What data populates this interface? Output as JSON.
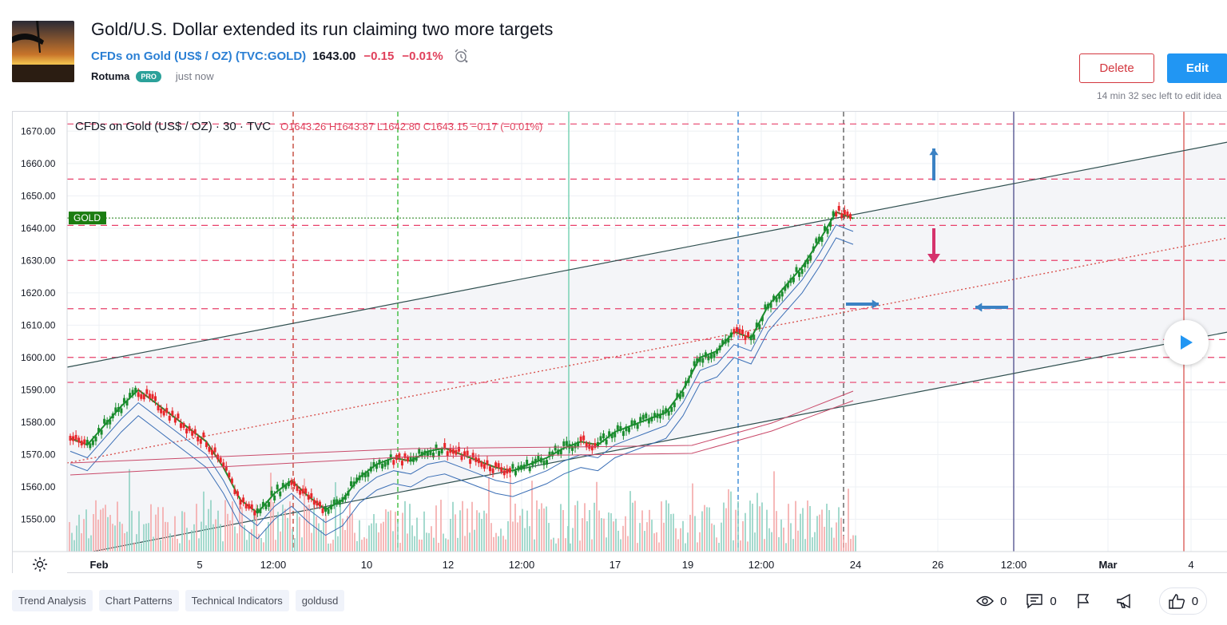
{
  "idea": {
    "title": "Gold/U.S. Dollar extended its run claiming two more targets",
    "symbol_name": "CFDs on Gold (US$ / OZ)",
    "symbol_ticker": "(TVC:GOLD)",
    "price": "1643.00",
    "change": "−0.15",
    "change_percent": "−0.01%",
    "author": "Rotuma",
    "badge": "PRO",
    "time": "just now"
  },
  "actions": {
    "delete_label": "Delete",
    "edit_label": "Edit",
    "edit_time_left": "14 min 32 sec left to edit idea"
  },
  "chart": {
    "legend_symbol": "CFDs on Gold (US$ / OZ)",
    "legend_interval": "30",
    "legend_exchange": "TVC",
    "o_label": "O",
    "o": "1643.26",
    "h_label": "H",
    "h": "1643.87",
    "l_label": "L",
    "l": "1642.80",
    "c_label": "C",
    "c": "1643.15",
    "change": "−0.17 (−0.01%)",
    "current_price_tag": "1643.15",
    "current_symbol_tag": "GOLD",
    "colors": {
      "up": "#1b8c2e",
      "down": "#e8262b",
      "level": "#e8406a",
      "price_tag": "#1b7d11",
      "trend": "#2f4f4f",
      "arrow": "#3b82c4"
    }
  },
  "chart_data": {
    "type": "line",
    "title": "CFDs on Gold (US$ / OZ) 30 TVC",
    "y_ticks": [
      "1550.00",
      "1560.00",
      "1570.00",
      "1580.00",
      "1590.00",
      "1600.00",
      "1610.00",
      "1620.00",
      "1630.00",
      "1640.00",
      "1650.00",
      "1660.00",
      "1670.00"
    ],
    "ylim": [
      1540,
      1676
    ],
    "level_tags": [
      "1672.22",
      "1655.18",
      "1640.86",
      "1630.02",
      "1615.09",
      "1605.58",
      "1600.04",
      "1592.31"
    ],
    "x_ticks": [
      "Feb",
      "5",
      "12:00",
      "10",
      "12",
      "12:00",
      "17",
      "19",
      "12:00",
      "24",
      "26",
      "12:00",
      "Mar",
      "4"
    ],
    "series": [
      {
        "name": "GOLD close (approx.)",
        "values": [
          1575,
          1573,
          1579,
          1585,
          1590,
          1586,
          1582,
          1578,
          1574,
          1566,
          1556,
          1552,
          1558,
          1562,
          1557,
          1553,
          1556,
          1563,
          1567,
          1569,
          1568,
          1571,
          1572,
          1570,
          1568,
          1566,
          1565,
          1567,
          1569,
          1572,
          1574,
          1573,
          1577,
          1579,
          1581,
          1583,
          1590,
          1600,
          1602,
          1608,
          1606,
          1616,
          1622,
          1628,
          1636,
          1645,
          1643
        ]
      }
    ]
  },
  "tags": [
    "Trend Analysis",
    "Chart Patterns",
    "Technical Indicators",
    "goldusd"
  ],
  "stats": {
    "views": "0",
    "comments": "0",
    "likes": "0"
  }
}
